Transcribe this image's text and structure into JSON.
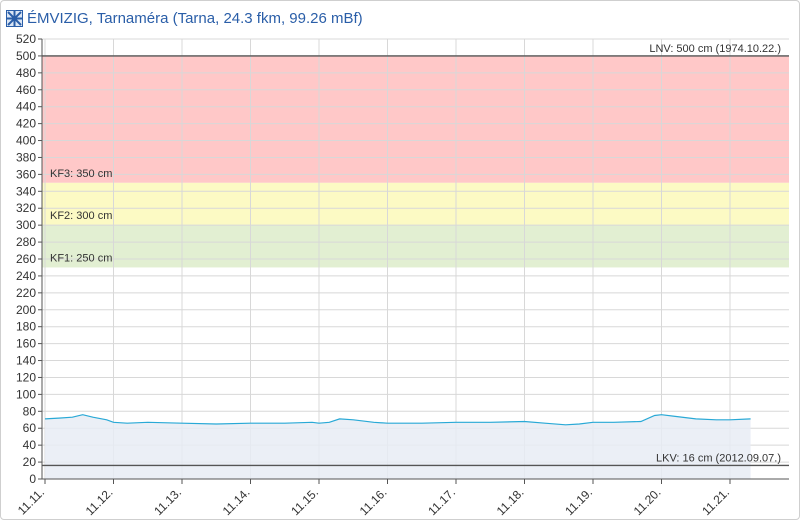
{
  "header": {
    "title": "ÉMVIZIG, Tarnaméra (Tarna, 24.3 fkm, 99.26 mBf)",
    "logo_icon": "emvizig-logo-icon"
  },
  "chart_data": {
    "type": "area",
    "title": "ÉMVIZIG, Tarnaméra (Tarna, 24.3 fkm, 99.26 mBf)",
    "xlabel": "",
    "ylabel": "",
    "ylim": [
      0,
      520
    ],
    "y_ticks": [
      0,
      20,
      40,
      60,
      80,
      100,
      120,
      140,
      160,
      180,
      200,
      220,
      240,
      260,
      280,
      300,
      320,
      340,
      360,
      380,
      400,
      420,
      440,
      460,
      480,
      500,
      520
    ],
    "x_ticks": [
      "11.11.",
      "11.12.",
      "11.13.",
      "11.14.",
      "11.15.",
      "11.16.",
      "11.17.",
      "11.18.",
      "11.19.",
      "11.20.",
      "11.21."
    ],
    "grid": true,
    "bands": [
      {
        "name": "KF3",
        "from": 350,
        "to": 500,
        "label": "KF3: 350 cm",
        "color": "#ffc8c8"
      },
      {
        "name": "KF2",
        "from": 300,
        "to": 350,
        "label": "KF2: 300 cm",
        "color": "#fcfac4"
      },
      {
        "name": "KF1",
        "from": 250,
        "to": 300,
        "label": "KF1: 250 cm",
        "color": "#e2efd2"
      }
    ],
    "reference_lines": [
      {
        "value": 500,
        "label": "LNV: 500 cm (1974.10.22.)"
      },
      {
        "value": 16,
        "label": "LKV: 16 cm (2012.09.07.)"
      }
    ],
    "series": [
      {
        "color": "#29a9d6",
        "x": [
          0,
          0.2,
          0.4,
          0.55,
          0.7,
          0.9,
          1.0,
          1.2,
          1.5,
          2.0,
          2.5,
          3.0,
          3.5,
          3.9,
          4.0,
          4.15,
          4.3,
          4.5,
          4.8,
          5.0,
          5.5,
          6.0,
          6.5,
          7.0,
          7.3,
          7.6,
          7.8,
          8.0,
          8.3,
          8.7,
          8.9,
          9.0,
          9.2,
          9.5,
          9.8,
          10.0,
          10.3
        ],
        "values": [
          71,
          72,
          73,
          76,
          73,
          70,
          67,
          66,
          67,
          66,
          65,
          66,
          66,
          67,
          66,
          67,
          71,
          70,
          67,
          66,
          66,
          67,
          67,
          68,
          66,
          64,
          65,
          67,
          67,
          68,
          75,
          76,
          74,
          71,
          70,
          70,
          71
        ]
      }
    ]
  }
}
